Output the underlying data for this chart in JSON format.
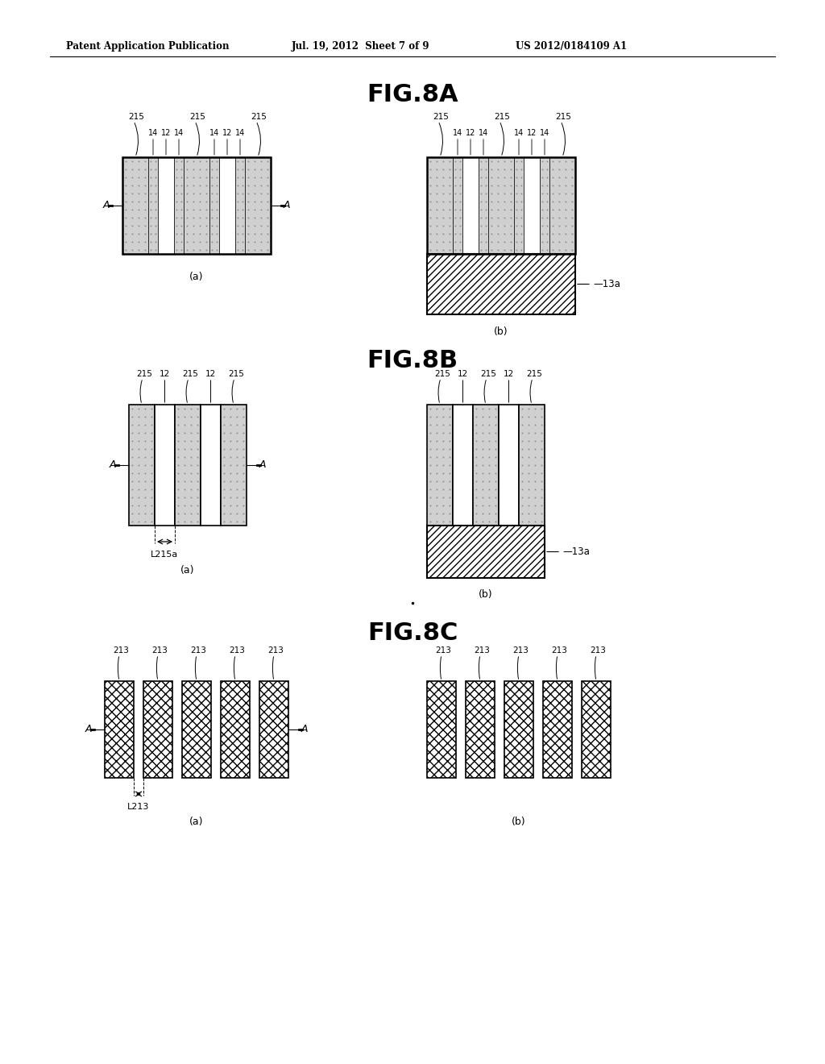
{
  "bg_color": "#ffffff",
  "header_left": "Patent Application Publication",
  "header_mid": "Jul. 19, 2012  Sheet 7 of 9",
  "header_right": "US 2012/0184109 A1",
  "fig8a_title": "FIG.8A",
  "fig8b_title": "FIG.8B",
  "fig8c_title": "FIG.8C"
}
